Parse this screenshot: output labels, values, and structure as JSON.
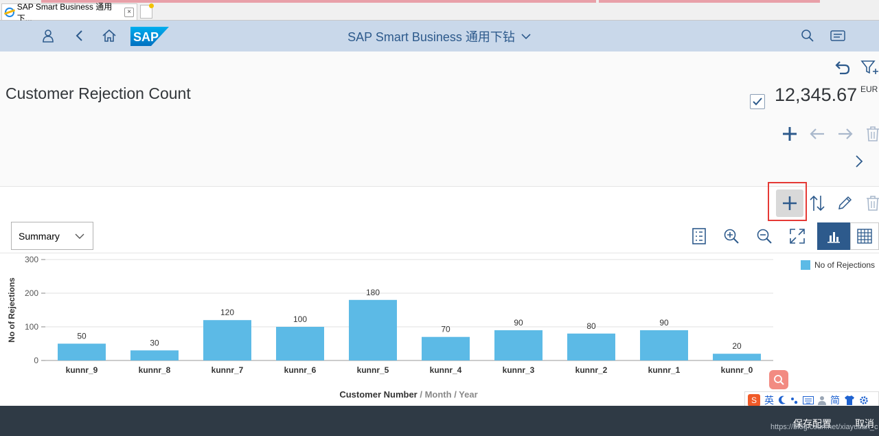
{
  "browser": {
    "tab_title": "SAP Smart Business 通用下...",
    "tab_close": "×"
  },
  "shell": {
    "title": "SAP Smart Business 通用下钻",
    "logo_text": "SAP",
    "icons": [
      "user-icon",
      "back-icon",
      "home-icon",
      "search-icon",
      "menu-icon"
    ]
  },
  "header": {
    "title": "Customer Rejection Count",
    "kpi_value": "12,345.67",
    "kpi_unit": "EUR"
  },
  "toolbar": {
    "select_value": "Summary"
  },
  "chart_data": {
    "type": "bar",
    "categories": [
      "kunnr_9",
      "kunnr_8",
      "kunnr_7",
      "kunnr_6",
      "kunnr_5",
      "kunnr_4",
      "kunnr_3",
      "kunnr_2",
      "kunnr_1",
      "kunnr_0"
    ],
    "series": [
      {
        "name": "No of Rejections",
        "values": [
          50,
          30,
          120,
          100,
          180,
          70,
          90,
          80,
          90,
          20
        ]
      }
    ],
    "ylabel": "No of Rejections",
    "xlabel": "Customer Number",
    "xlabel_suffix": "/ Month / Year",
    "ylim": [
      0,
      300
    ],
    "yticks": [
      0,
      100,
      200,
      300
    ],
    "legend_position": "top-right",
    "bar_color": "#5cbae6"
  },
  "ime": {
    "label": "英",
    "simplified": "简"
  },
  "footer": {
    "save_label": "保存配置",
    "cancel_label": "取消",
    "watermark": "https://blog.csdn.net/xiayutian_c"
  },
  "colors": {
    "shell_bg": "#c9d8ea",
    "accent": "#2d5a8c",
    "footer_bg": "#2f3a45"
  }
}
